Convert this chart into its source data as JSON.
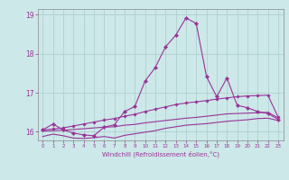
{
  "bg_color": "#cce8e8",
  "grid_color": "#aacccc",
  "line_color": "#993399",
  "xlim": [
    -0.5,
    23.5
  ],
  "ylim": [
    15.78,
    19.15
  ],
  "yticks": [
    16,
    17,
    18,
    19
  ],
  "xticks": [
    0,
    1,
    2,
    3,
    4,
    5,
    6,
    7,
    8,
    9,
    10,
    11,
    12,
    13,
    14,
    15,
    16,
    17,
    18,
    19,
    20,
    21,
    22,
    23
  ],
  "xlabel": "Windchill (Refroidissement éolien,°C)",
  "series1_x": [
    0,
    1,
    2,
    3,
    4,
    5,
    6,
    7,
    8,
    9,
    10,
    11,
    12,
    13,
    14,
    15,
    16,
    17,
    18,
    19,
    20,
    21,
    22,
    23
  ],
  "series1_y": [
    16.05,
    16.2,
    16.05,
    15.97,
    15.92,
    15.9,
    16.12,
    16.18,
    16.52,
    16.65,
    17.3,
    17.65,
    18.18,
    18.48,
    18.92,
    18.78,
    17.42,
    16.9,
    17.38,
    16.68,
    16.62,
    16.52,
    16.47,
    16.32
  ],
  "series2_x": [
    0,
    1,
    2,
    3,
    4,
    5,
    6,
    7,
    8,
    9,
    10,
    11,
    12,
    13,
    14,
    15,
    16,
    17,
    18,
    19,
    20,
    21,
    22,
    23
  ],
  "series2_y": [
    16.05,
    16.07,
    16.1,
    16.15,
    16.2,
    16.25,
    16.3,
    16.34,
    16.4,
    16.45,
    16.52,
    16.58,
    16.64,
    16.7,
    16.74,
    16.77,
    16.8,
    16.84,
    16.87,
    16.9,
    16.92,
    16.93,
    16.94,
    16.38
  ],
  "series3_x": [
    0,
    1,
    2,
    3,
    4,
    5,
    6,
    7,
    8,
    9,
    10,
    11,
    12,
    13,
    14,
    15,
    16,
    17,
    18,
    19,
    20,
    21,
    22,
    23
  ],
  "series3_y": [
    16.02,
    16.03,
    16.04,
    16.06,
    16.08,
    16.1,
    16.12,
    16.13,
    16.17,
    16.19,
    16.23,
    16.26,
    16.29,
    16.32,
    16.35,
    16.37,
    16.4,
    16.43,
    16.46,
    16.47,
    16.48,
    16.49,
    16.5,
    16.36
  ],
  "series4_x": [
    0,
    1,
    2,
    3,
    4,
    5,
    6,
    7,
    8,
    9,
    10,
    11,
    12,
    13,
    14,
    15,
    16,
    17,
    18,
    19,
    20,
    21,
    22,
    23
  ],
  "series4_y": [
    15.88,
    15.94,
    15.9,
    15.84,
    15.83,
    15.85,
    15.88,
    15.84,
    15.91,
    15.95,
    15.99,
    16.03,
    16.09,
    16.13,
    16.17,
    16.19,
    16.21,
    16.24,
    16.27,
    16.29,
    16.31,
    16.34,
    16.35,
    16.29
  ]
}
